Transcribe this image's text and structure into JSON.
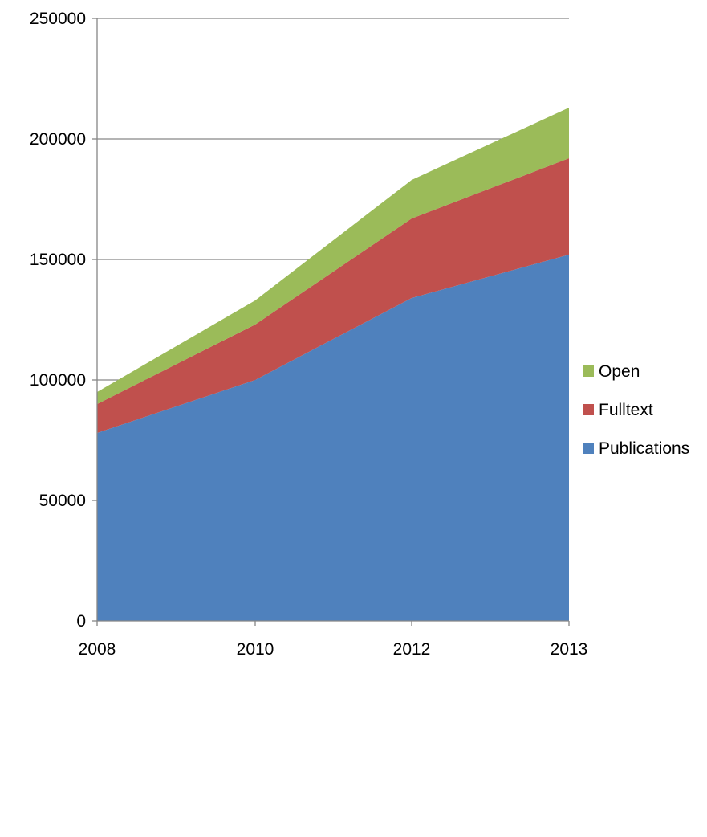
{
  "chart_data": {
    "type": "area",
    "stacked": true,
    "x": [
      "2008",
      "2010",
      "2012",
      "2013"
    ],
    "series": [
      {
        "name": "Publications",
        "color": "#4F81BD",
        "values": [
          78000,
          100000,
          134000,
          152000
        ]
      },
      {
        "name": "Fulltext",
        "color": "#C0504D",
        "values": [
          12000,
          23000,
          33000,
          40000
        ]
      },
      {
        "name": "Open",
        "color": "#9BBB59",
        "values": [
          5000,
          10000,
          16000,
          21000
        ]
      }
    ],
    "legend_order": [
      "Open",
      "Fulltext",
      "Publications"
    ],
    "ylim": [
      0,
      250000
    ],
    "yticks": [
      0,
      50000,
      100000,
      150000,
      200000,
      250000
    ],
    "ytick_labels": [
      "0",
      "50000",
      "100000",
      "150000",
      "200000",
      "250000"
    ],
    "legend_position": "right",
    "grid": "horizontal",
    "title": "",
    "xlabel": "",
    "ylabel": ""
  }
}
